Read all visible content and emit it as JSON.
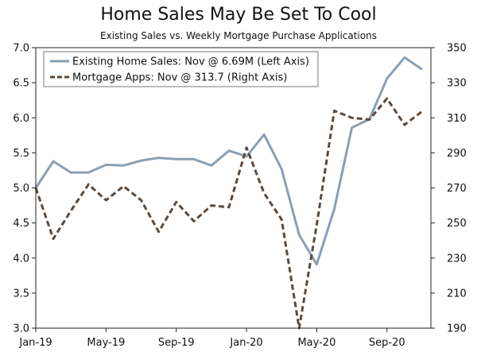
{
  "chart_data": {
    "type": "line",
    "title": "Home Sales May Be Set To Cool",
    "subtitle": "Existing Sales vs. Weekly Mortgage Purchase Applications",
    "x": [
      "Jan-19",
      "Feb-19",
      "Mar-19",
      "Apr-19",
      "May-19",
      "Jun-19",
      "Jul-19",
      "Aug-19",
      "Sep-19",
      "Oct-19",
      "Nov-19",
      "Dec-19",
      "Jan-20",
      "Feb-20",
      "Mar-20",
      "Apr-20",
      "May-20",
      "Jun-20",
      "Jul-20",
      "Aug-20",
      "Sep-20",
      "Oct-20",
      "Nov-20"
    ],
    "x_tick_labels": [
      "Jan-19",
      "May-19",
      "Sep-19",
      "Jan-20",
      "May-20",
      "Sep-20"
    ],
    "x_tick_every": 4,
    "left_axis": {
      "ylim": [
        3.0,
        7.0
      ],
      "ticks": [
        "3.0",
        "3.5",
        "4.0",
        "4.5",
        "5.0",
        "5.5",
        "6.0",
        "6.5",
        "7.0"
      ]
    },
    "right_axis": {
      "ylim": [
        190,
        350
      ],
      "ticks": [
        "190",
        "210",
        "230",
        "250",
        "270",
        "290",
        "310",
        "330",
        "350"
      ]
    },
    "series": [
      {
        "name": "Existing Home Sales: Nov @ 6.69M (Left Axis)",
        "axis": "left",
        "style": "solid",
        "color": "#8a9fb3",
        "values": [
          5.0,
          5.38,
          5.22,
          5.22,
          5.33,
          5.32,
          5.39,
          5.43,
          5.41,
          5.41,
          5.32,
          5.53,
          5.45,
          5.76,
          5.27,
          4.33,
          3.91,
          4.7,
          5.86,
          5.98,
          6.56,
          6.86,
          6.69
        ]
      },
      {
        "name": "Mortgage Apps: Nov @ 313.7 (Right Axis)",
        "axis": "right",
        "style": "dashed",
        "color": "#5b4a3d",
        "values": [
          270,
          241,
          257,
          272,
          263,
          271,
          263,
          245,
          262,
          251,
          260,
          259,
          293,
          267,
          252,
          190,
          249,
          314,
          310,
          309,
          321,
          306,
          313.7
        ]
      }
    ]
  }
}
